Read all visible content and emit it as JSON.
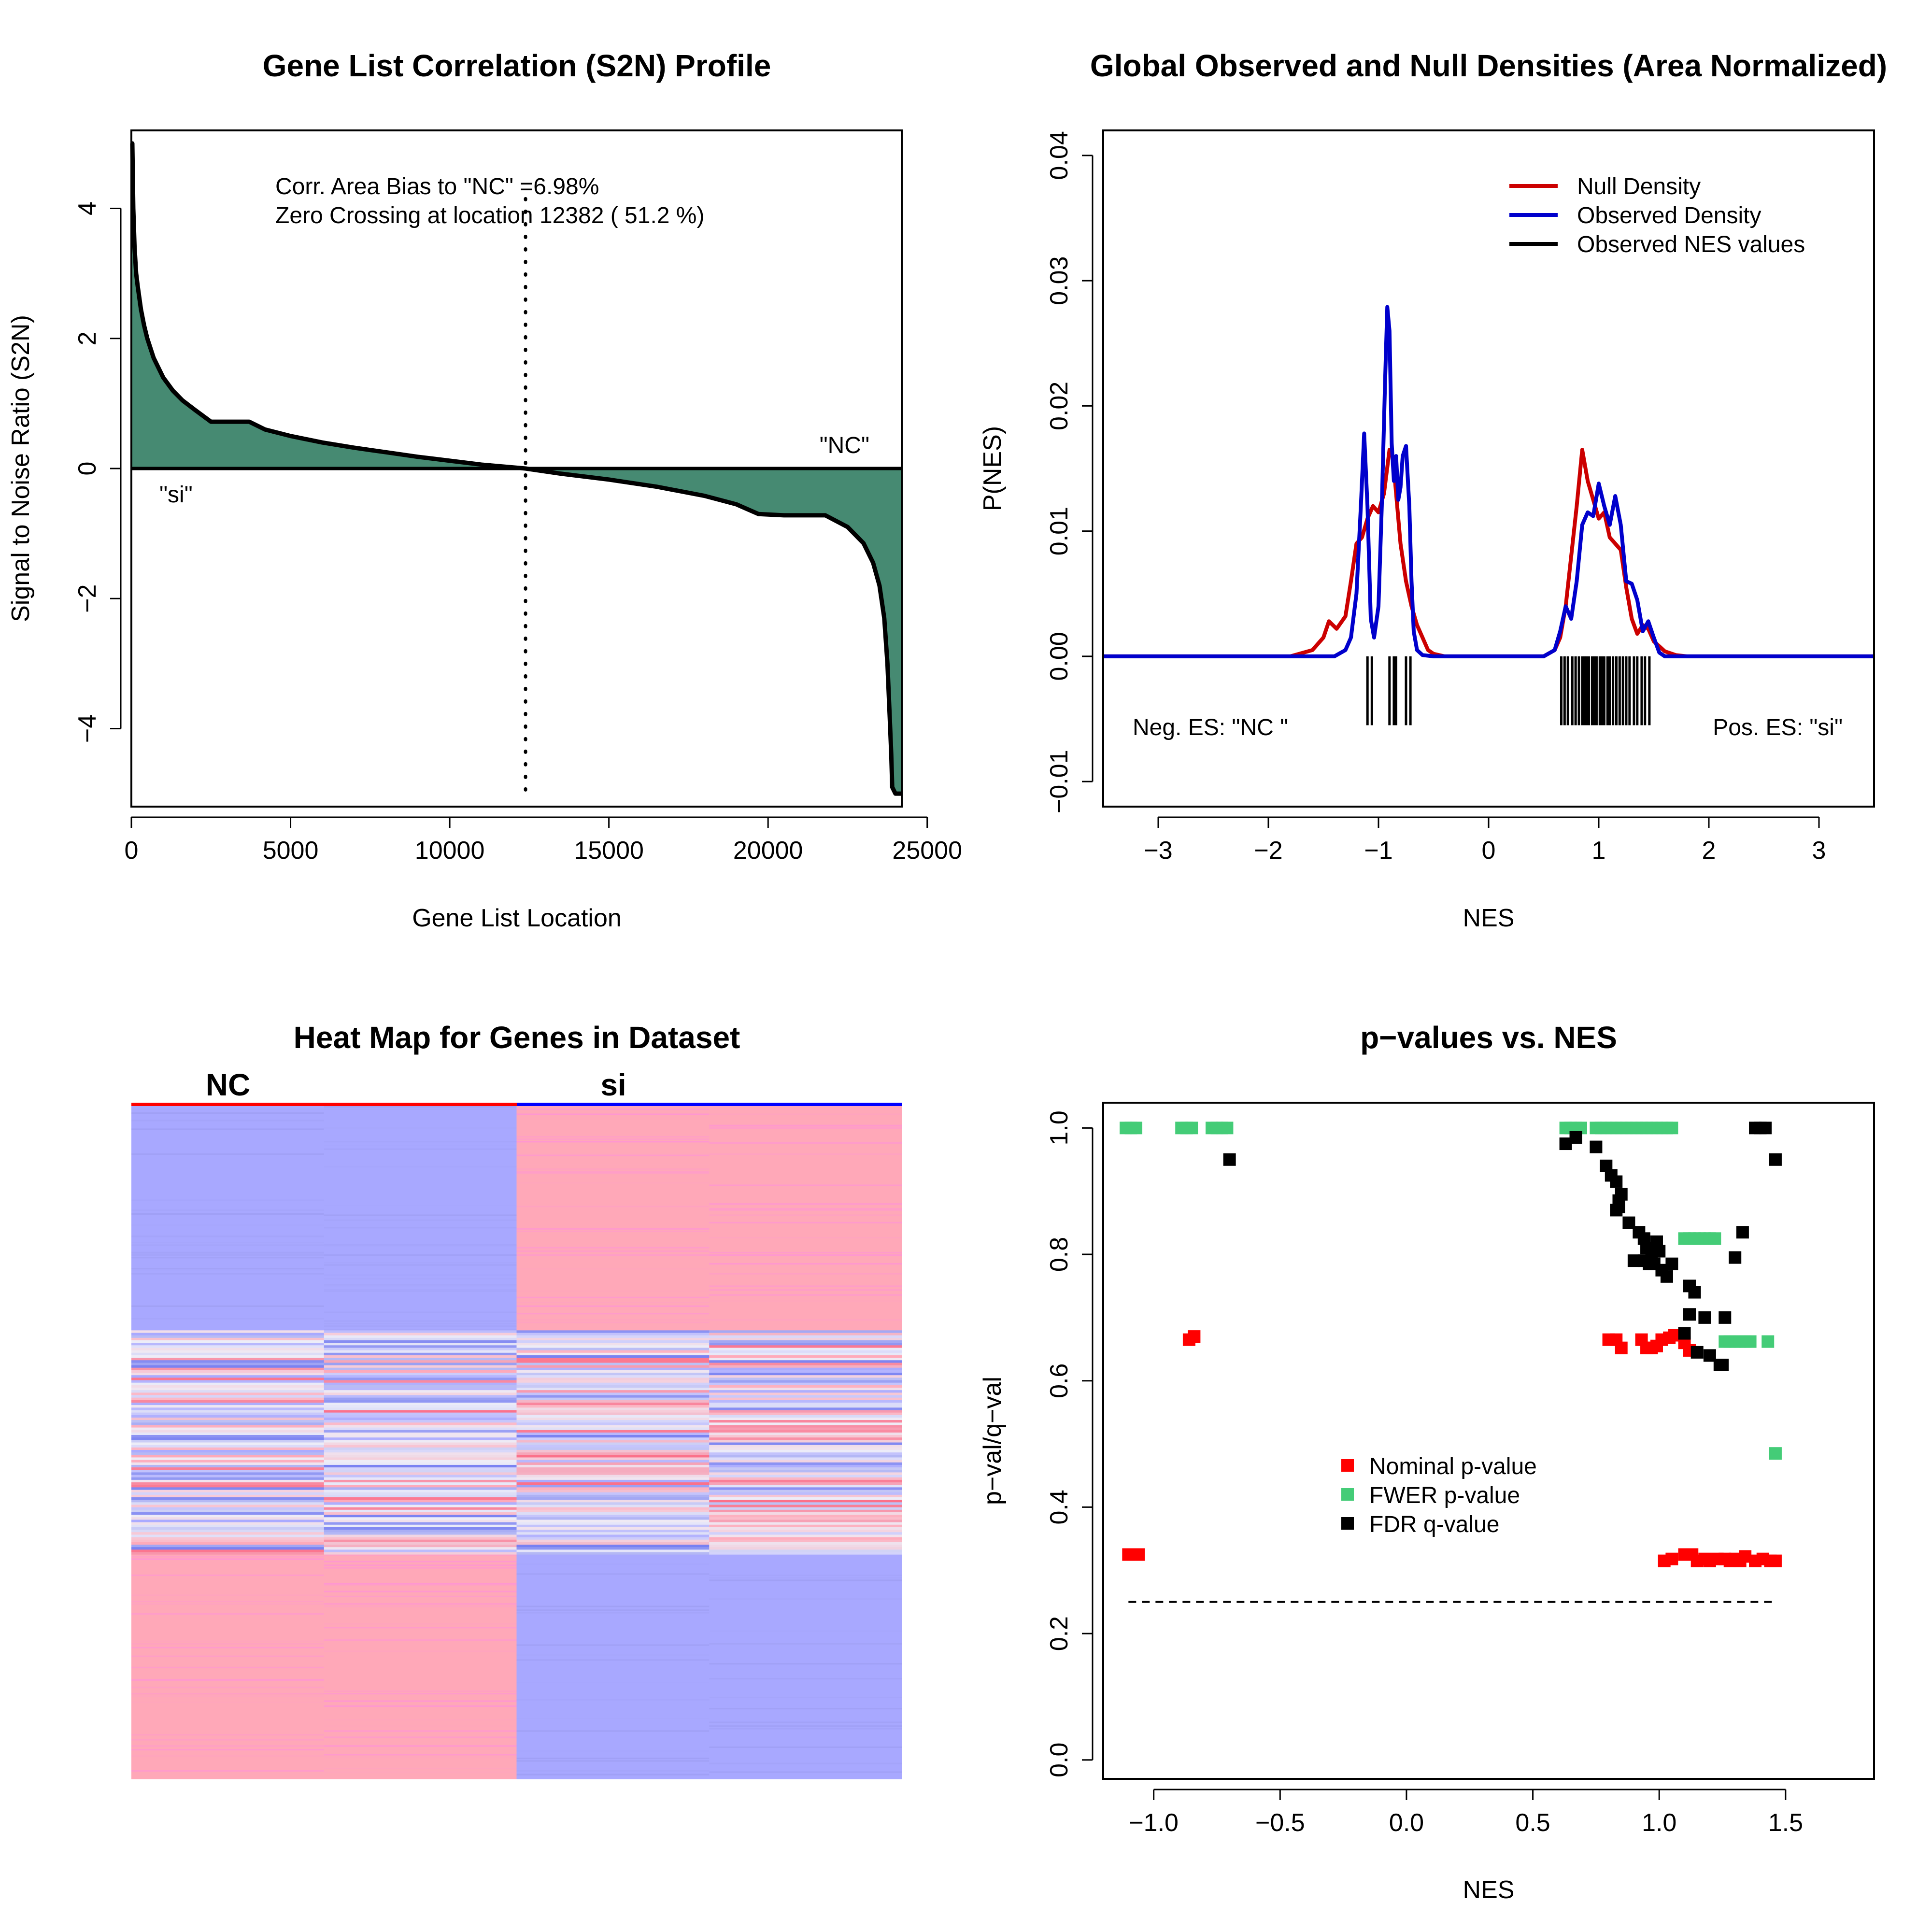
{
  "colors": {
    "s2n_fill": "#468a72",
    "null_density": "#cc0000",
    "observed_density": "#0000cc",
    "observed_nes": "#000000",
    "nominal_p": "#ff0000",
    "fwer_p": "#44cc77",
    "fdr_q": "#000000",
    "heat_low": "#a8a8ff",
    "heat_high": "#ffa8b8",
    "class_nc": "#ff0000",
    "class_si": "#0000ff"
  },
  "chart_data": [
    {
      "type": "area",
      "title": "Gene List Correlation (S2N) Profile",
      "xlabel": "Gene List Location",
      "ylabel": "Signal to Noise Ratio (S2N)",
      "xlim": [
        0,
        24200
      ],
      "ylim": [
        -5.2,
        5.2
      ],
      "xticks": [
        0,
        5000,
        10000,
        15000,
        20000,
        25000
      ],
      "xtick_labels": [
        "0",
        "5000",
        "10000",
        "15000",
        "20000",
        "25000"
      ],
      "yticks": [
        -4,
        -2,
        0,
        2,
        4
      ],
      "ytick_labels": [
        "−4",
        "−2",
        "0",
        "2",
        "4"
      ],
      "x": [
        0,
        30,
        60,
        100,
        150,
        200,
        300,
        400,
        500,
        700,
        1000,
        1300,
        1600,
        2000,
        2500,
        3000,
        3700,
        4200,
        5000,
        6000,
        7000,
        8000,
        9000,
        10000,
        11000,
        12382,
        13500,
        15000,
        16500,
        18000,
        19000,
        19700,
        20500,
        21000,
        21800,
        22500,
        23000,
        23300,
        23500,
        23650,
        23750,
        23820,
        23870,
        23900,
        24000,
        24100,
        24200
      ],
      "values": [
        5.0,
        5.0,
        4.0,
        3.4,
        3.0,
        2.8,
        2.45,
        2.2,
        2.0,
        1.7,
        1.4,
        1.2,
        1.05,
        0.9,
        0.72,
        0.72,
        0.72,
        0.6,
        0.5,
        0.4,
        0.32,
        0.25,
        0.18,
        0.12,
        0.06,
        0.0,
        -0.08,
        -0.17,
        -0.28,
        -0.42,
        -0.55,
        -0.7,
        -0.72,
        -0.72,
        -0.72,
        -0.9,
        -1.15,
        -1.45,
        -1.8,
        -2.3,
        -3.0,
        -3.8,
        -4.4,
        -4.9,
        -5.0,
        -5.0,
        -5.0
      ],
      "zero_crossing": 12382,
      "annotations": [
        "Corr. Area Bias to \"NC\" =6.98%",
        "Zero Crossing at location  12382  ( 51.2  %)",
        "\"NC\"",
        "\"si\""
      ]
    },
    {
      "type": "line",
      "title": "Global Observed and Null Densities (Area Normalized)",
      "xlabel": "NES",
      "ylabel": "P(NES)",
      "xlim": [
        -3.5,
        3.5
      ],
      "ylim": [
        -0.012,
        0.042
      ],
      "xticks": [
        -3,
        -2,
        -1,
        0,
        1,
        2,
        3
      ],
      "xtick_labels": [
        "−3",
        "−2",
        "−1",
        "0",
        "1",
        "2",
        "3"
      ],
      "yticks": [
        -0.01,
        0.0,
        0.01,
        0.02,
        0.03,
        0.04
      ],
      "ytick_labels": [
        "−0.01",
        "0.00",
        "0.01",
        "0.02",
        "0.03",
        "0.04"
      ],
      "legend_position": "top-right",
      "series": [
        {
          "name": "Null Density",
          "x": [
            -3.5,
            -1.8,
            -1.6,
            -1.5,
            -1.45,
            -1.38,
            -1.3,
            -1.25,
            -1.2,
            -1.15,
            -1.1,
            -1.05,
            -1.0,
            -0.95,
            -0.9,
            -0.87,
            -0.84,
            -0.8,
            -0.75,
            -0.7,
            -0.65,
            -0.6,
            -0.55,
            -0.5,
            -0.4,
            0.5,
            0.6,
            0.65,
            0.7,
            0.75,
            0.8,
            0.85,
            0.9,
            0.95,
            1.0,
            1.05,
            1.1,
            1.15,
            1.2,
            1.25,
            1.3,
            1.35,
            1.4,
            1.45,
            1.5,
            1.6,
            1.7,
            1.8,
            3.5
          ],
          "values": [
            0.0,
            0.0,
            0.0005,
            0.0015,
            0.0028,
            0.0022,
            0.0032,
            0.006,
            0.009,
            0.0095,
            0.011,
            0.012,
            0.0115,
            0.013,
            0.0165,
            0.016,
            0.013,
            0.009,
            0.006,
            0.004,
            0.0025,
            0.0015,
            0.0005,
            0.0002,
            0.0,
            0.0,
            0.0005,
            0.0015,
            0.004,
            0.008,
            0.012,
            0.0165,
            0.014,
            0.0125,
            0.011,
            0.0115,
            0.0095,
            0.009,
            0.0085,
            0.0055,
            0.003,
            0.0018,
            0.0025,
            0.0022,
            0.0012,
            0.0004,
            0.0001,
            0.0,
            0.0
          ]
        },
        {
          "name": "Observed Density",
          "x": [
            -3.5,
            -1.4,
            -1.3,
            -1.25,
            -1.2,
            -1.16,
            -1.13,
            -1.1,
            -1.07,
            -1.04,
            -1.0,
            -0.97,
            -0.94,
            -0.92,
            -0.9,
            -0.88,
            -0.86,
            -0.84,
            -0.82,
            -0.8,
            -0.78,
            -0.75,
            -0.72,
            -0.7,
            -0.68,
            -0.65,
            -0.6,
            -0.5,
            0.5,
            0.6,
            0.65,
            0.7,
            0.75,
            0.8,
            0.85,
            0.9,
            0.95,
            1.0,
            1.05,
            1.1,
            1.15,
            1.2,
            1.25,
            1.3,
            1.35,
            1.4,
            1.45,
            1.5,
            1.55,
            1.6,
            3.5
          ],
          "values": [
            0.0,
            0.0,
            0.0005,
            0.0015,
            0.005,
            0.012,
            0.0178,
            0.012,
            0.003,
            0.0015,
            0.004,
            0.012,
            0.022,
            0.0279,
            0.026,
            0.017,
            0.014,
            0.016,
            0.0125,
            0.0135,
            0.016,
            0.0168,
            0.012,
            0.006,
            0.002,
            0.0005,
            0.0001,
            0.0,
            0.0,
            0.0005,
            0.002,
            0.004,
            0.003,
            0.006,
            0.0105,
            0.0115,
            0.0112,
            0.0138,
            0.012,
            0.0105,
            0.0128,
            0.0105,
            0.006,
            0.0058,
            0.0045,
            0.002,
            0.0028,
            0.0015,
            0.0003,
            0.0,
            0.0
          ]
        }
      ],
      "observed_nes_ticks": [
        -1.1,
        -1.06,
        -0.9,
        -0.86,
        -0.84,
        -0.75,
        -0.71,
        0.66,
        0.69,
        0.72,
        0.76,
        0.79,
        0.82,
        0.85,
        0.87,
        0.89,
        0.91,
        0.94,
        0.96,
        0.98,
        1.01,
        1.03,
        1.05,
        1.08,
        1.1,
        1.13,
        1.16,
        1.19,
        1.22,
        1.25,
        1.28,
        1.32,
        1.35,
        1.39,
        1.42,
        1.46
      ],
      "observed_nes_label": "Observed NES values",
      "annotations": [
        "Neg. ES: \"NC \"",
        "Pos. ES: \"si\""
      ]
    },
    {
      "type": "heatmap",
      "title": "Heat Map for Genes in Dataset",
      "column_groups": [
        "NC",
        "si"
      ],
      "columns": 4,
      "blocks": [
        {
          "rows": 180,
          "values": [
            -1,
            -1,
            1,
            1
          ]
        },
        {
          "rows": 180,
          "values": [
            0,
            0,
            0,
            0
          ]
        },
        {
          "rows": 180,
          "values": [
            1,
            1,
            -1,
            -1
          ]
        }
      ]
    },
    {
      "type": "scatter",
      "title": "p−values vs. NES",
      "xlabel": "NES",
      "ylabel": "p−val/q−val",
      "xlim": [
        -1.2,
        1.85
      ],
      "ylim": [
        -0.03,
        1.04
      ],
      "xticks": [
        -1.0,
        -0.5,
        0.0,
        0.5,
        1.0,
        1.5
      ],
      "xtick_labels": [
        "−1.0",
        "−0.5",
        "0.0",
        "0.5",
        "1.0",
        "1.5"
      ],
      "yticks": [
        0.0,
        0.2,
        0.4,
        0.6,
        0.8,
        1.0
      ],
      "ytick_labels": [
        "0.0",
        "0.2",
        "0.4",
        "0.6",
        "0.8",
        "1.0"
      ],
      "threshold": {
        "y": 0.25,
        "x_from": -1.1,
        "x_to": 1.46
      },
      "legend_position": "center-left",
      "series": [
        {
          "name": "Nominal p-value",
          "x": [
            -1.1,
            -1.08,
            -1.06,
            -0.86,
            -0.84,
            0.8,
            0.83,
            0.85,
            0.93,
            0.95,
            0.97,
            0.99,
            1.01,
            1.04,
            1.06,
            1.1,
            1.12,
            1.02,
            1.05,
            1.1,
            1.13,
            1.15,
            1.18,
            1.2,
            1.23,
            1.26,
            1.28,
            1.3,
            1.32,
            1.34,
            1.38,
            1.41,
            1.44,
            1.46
          ],
          "values": [
            0.325,
            0.325,
            0.325,
            0.665,
            0.67,
            0.665,
            0.665,
            0.652,
            0.665,
            0.652,
            0.652,
            0.655,
            0.665,
            0.668,
            0.672,
            0.66,
            0.648,
            0.315,
            0.318,
            0.325,
            0.325,
            0.315,
            0.318,
            0.315,
            0.318,
            0.318,
            0.315,
            0.318,
            0.315,
            0.322,
            0.315,
            0.318,
            0.315,
            0.315
          ]
        },
        {
          "name": "FWER p-value",
          "x": [
            -1.11,
            -1.09,
            -1.07,
            -0.89,
            -0.87,
            -0.85,
            -0.77,
            -0.75,
            -0.73,
            -0.71,
            0.63,
            0.65,
            0.67,
            0.69,
            0.75,
            0.77,
            0.79,
            0.81,
            0.83,
            0.85,
            0.87,
            0.89,
            0.91,
            0.93,
            0.95,
            0.97,
            0.99,
            1.01,
            1.03,
            1.05,
            1.1,
            1.12,
            1.14,
            1.16,
            1.18,
            1.2,
            1.22,
            1.26,
            1.28,
            1.3,
            1.32,
            1.34,
            1.36,
            1.43,
            1.46
          ],
          "values": [
            1.0,
            1.0,
            1.0,
            1.0,
            1.0,
            1.0,
            1.0,
            1.0,
            1.0,
            1.0,
            1.0,
            1.0,
            1.0,
            1.0,
            1.0,
            1.0,
            1.0,
            1.0,
            1.0,
            1.0,
            1.0,
            1.0,
            1.0,
            1.0,
            1.0,
            1.0,
            1.0,
            1.0,
            1.0,
            1.0,
            0.825,
            0.825,
            0.825,
            0.825,
            0.825,
            0.825,
            0.825,
            0.662,
            0.662,
            0.662,
            0.662,
            0.662,
            0.662,
            0.662,
            0.485
          ]
        },
        {
          "name": "FDR q-value",
          "x": [
            -0.7,
            0.63,
            0.67,
            0.75,
            0.79,
            0.81,
            0.83,
            0.83,
            0.84,
            0.85,
            0.84,
            0.88,
            0.92,
            0.94,
            0.95,
            0.97,
            0.96,
            0.98,
            0.99,
            1.0,
            1.01,
            1.03,
            1.05,
            0.9,
            0.94,
            1.12,
            1.14,
            1.18,
            1.24,
            1.26,
            1.3,
            1.33,
            1.38,
            1.4,
            1.42,
            1.46,
            1.1,
            1.12,
            1.15,
            1.2,
            1.25
          ],
          "values": [
            0.95,
            0.975,
            0.985,
            0.97,
            0.94,
            0.925,
            0.915,
            0.87,
            0.885,
            0.895,
            0.875,
            0.85,
            0.835,
            0.825,
            0.81,
            0.8,
            0.785,
            0.785,
            0.82,
            0.805,
            0.775,
            0.765,
            0.785,
            0.79,
            0.79,
            0.75,
            0.74,
            0.7,
            0.625,
            0.7,
            0.795,
            0.835,
            1.0,
            1.0,
            1.0,
            0.95,
            0.675,
            0.705,
            0.645,
            0.64,
            0.625
          ]
        }
      ]
    }
  ]
}
